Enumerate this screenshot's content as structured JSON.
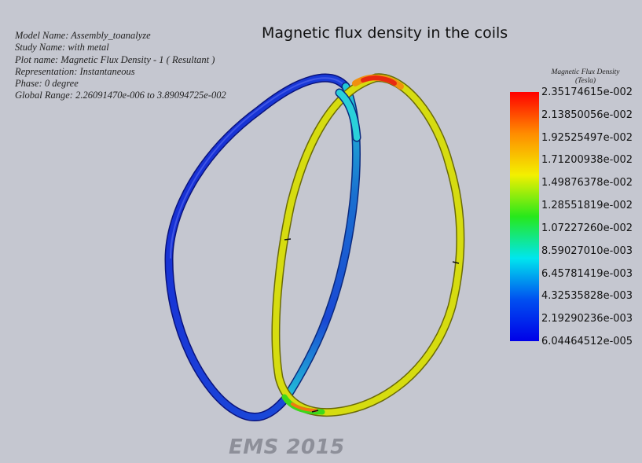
{
  "info": {
    "model_name": "Model Name: Assembly_toanalyze",
    "study_name": "Study Name: with metal",
    "plot_name": "Plot name: Magnetic Flux Density - 1 ( Resultant )",
    "representation": "Representation: Instantaneous",
    "phase": "Phase: 0 degree",
    "global_range": "Global Range: 2.26091470e-006 to 3.89094725e-002"
  },
  "plot_title": "Magnetic flux density in the coils",
  "legend": {
    "title_line1": "Magnetic Flux Density",
    "title_line2": "(Tesla)",
    "ticks": [
      "2.35174615e-002",
      "2.13850056e-002",
      "1.92525497e-002",
      "1.71200938e-002",
      "1.49876378e-002",
      "1.28551819e-002",
      "1.07227260e-002",
      "8.59027010e-003",
      "6.45781419e-003",
      "4.32535828e-003",
      "2.19290236e-003",
      "6.04464512e-005"
    ],
    "colors": [
      "#ff0000",
      "#ff8c00",
      "#f3f000",
      "#27e81b",
      "#00e6ee",
      "#0050f0",
      "#0000e8"
    ]
  },
  "coils": {
    "left_color_main": "#1427d0",
    "left_color_light": "#2bc0d6",
    "right_color_main": "#d6dc10",
    "right_color_hot": "#ee2a10"
  },
  "watermark": "EMS 2015"
}
